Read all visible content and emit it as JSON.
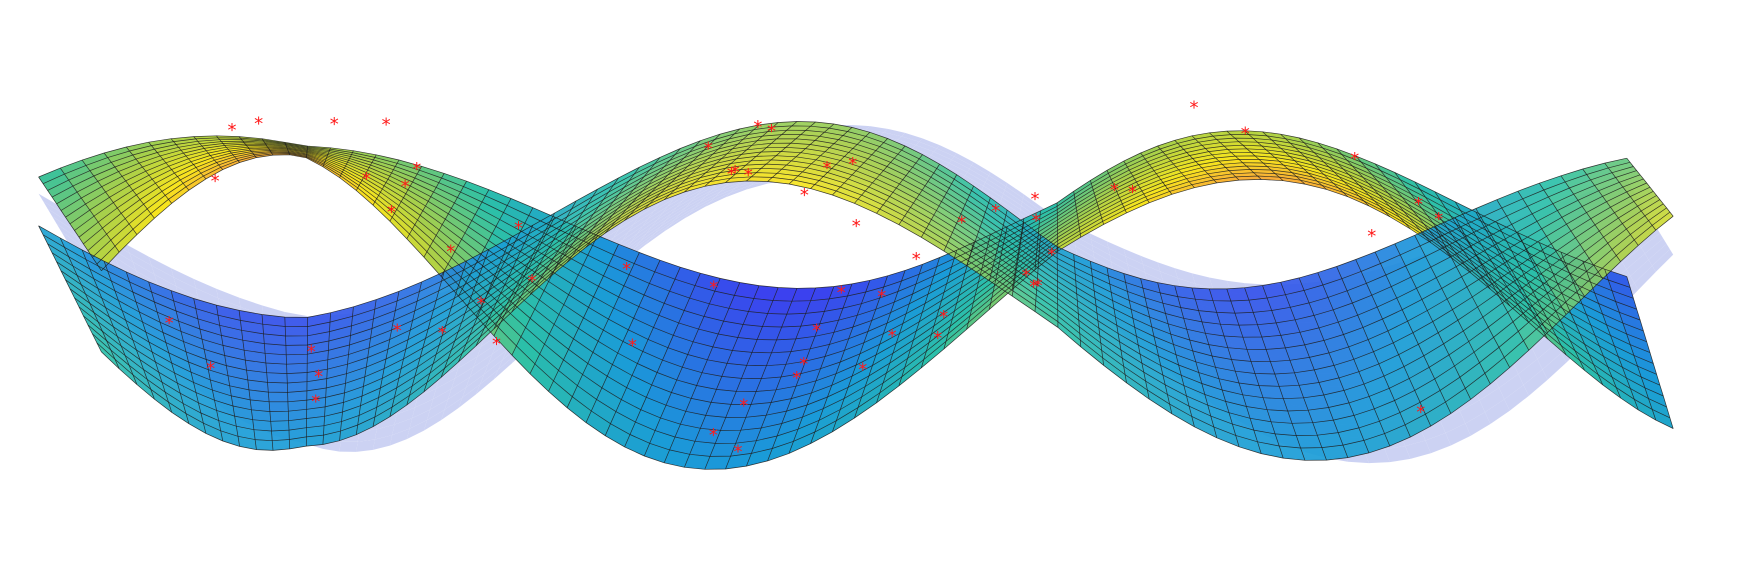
{
  "chart_data": {
    "type": "surface",
    "title": "",
    "xlabel": "",
    "ylabel": "",
    "zlabel": "",
    "axes_visible": false,
    "grid": false,
    "legend": "none",
    "colormap": "parula",
    "colors": {
      "background": "#ffffff",
      "low": "#3d3df0",
      "mid_low": "#1a9bd8",
      "mid": "#2cc0a8",
      "mid_high": "#a8d04a",
      "high": "#f7e51e",
      "peak": "#f8a83a",
      "back_surface": "#c7cdf2",
      "mesh_edge": "#1a1a1a",
      "marker": "#ff1a1a"
    },
    "series": [
      {
        "kind": "surface",
        "shape": "twisted sinusoidal sheet",
        "x_range": [
          -3,
          3
        ],
        "y_range": [
          -1,
          1
        ],
        "z_range": [
          -1,
          1
        ]
      },
      {
        "kind": "scatter3d",
        "marker": "*",
        "point_count": 64
      }
    ]
  }
}
